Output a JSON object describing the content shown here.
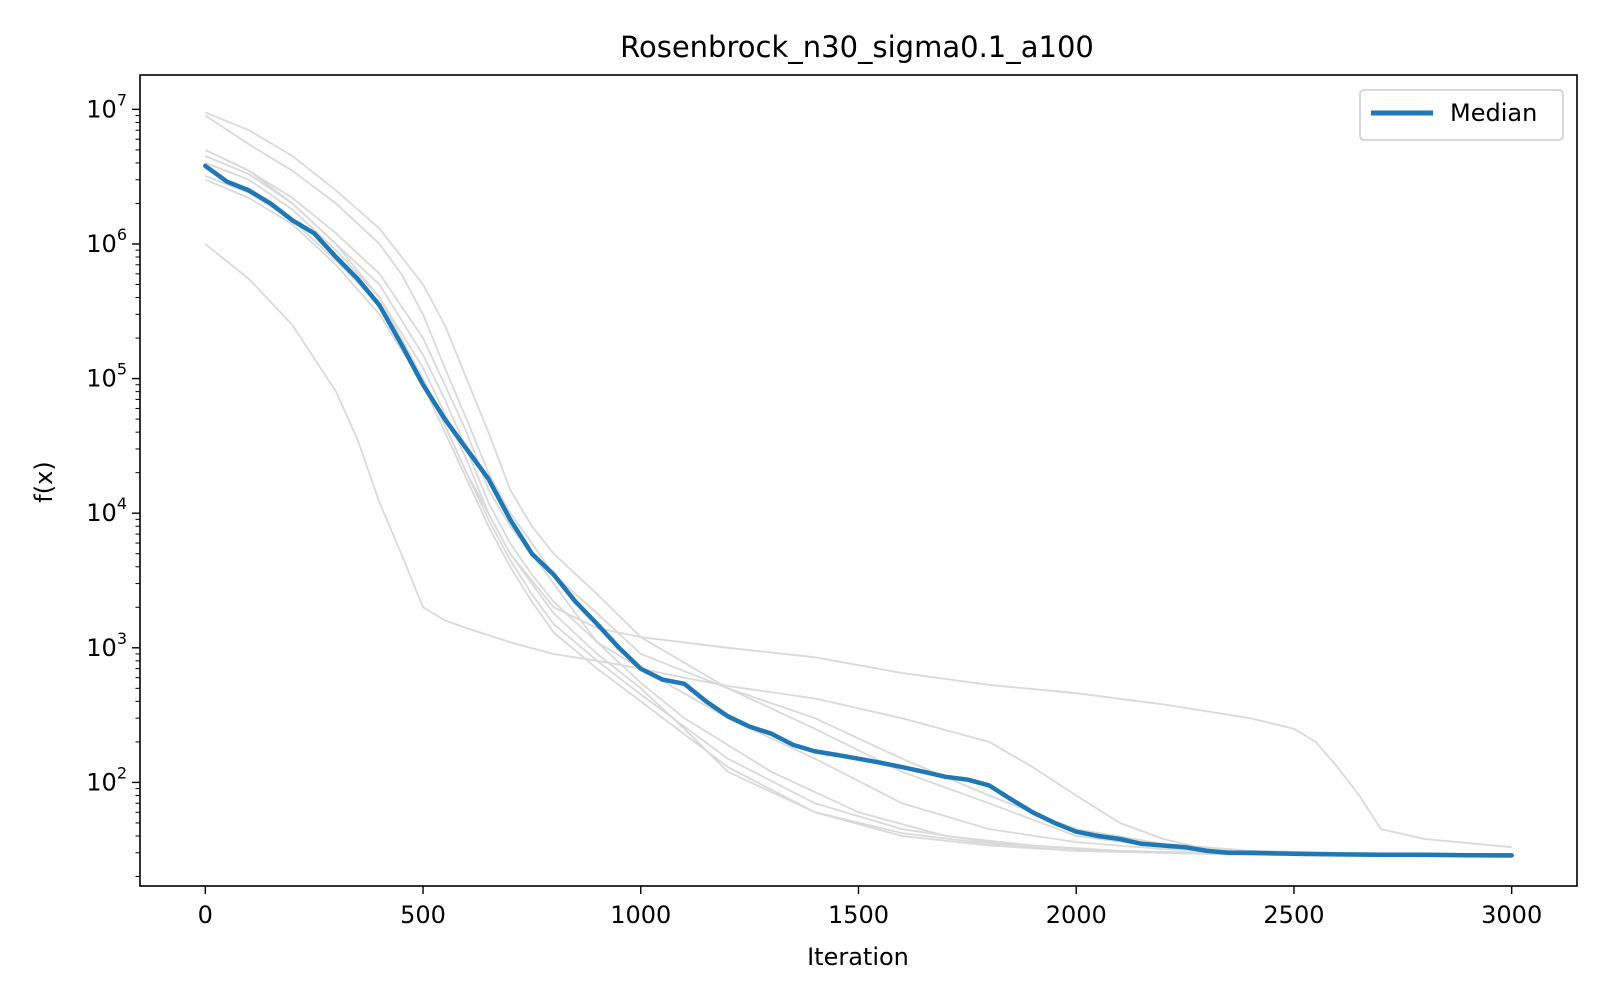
{
  "chart_data": {
    "type": "line",
    "title": "Rosenbrock_n30_sigma0.1_a100",
    "xlabel": "Iteration",
    "ylabel": "f(x)",
    "xlim": [
      -150,
      3150
    ],
    "ylim": [
      17,
      18000000
    ],
    "yscale": "log",
    "xticks": [
      0,
      500,
      1000,
      1500,
      2000,
      2500,
      3000
    ],
    "xtick_labels": [
      "0",
      "500",
      "1000",
      "1500",
      "2000",
      "2500",
      "3000"
    ],
    "yticks": [
      100,
      1000,
      10000,
      100000,
      1000000,
      10000000
    ],
    "ytick_labels": [
      {
        "base": "10",
        "exp": "2"
      },
      {
        "base": "10",
        "exp": "3"
      },
      {
        "base": "10",
        "exp": "4"
      },
      {
        "base": "10",
        "exp": "5"
      },
      {
        "base": "10",
        "exp": "6"
      },
      {
        "base": "10",
        "exp": "7"
      }
    ],
    "grid": false,
    "legend": {
      "position": "top-right",
      "entries": [
        "Median"
      ]
    },
    "colors": {
      "median": "#1f77b4",
      "runs": "#d9d9d9"
    },
    "series": [
      {
        "name": "Median",
        "x": [
          0,
          50,
          100,
          150,
          200,
          250,
          300,
          350,
          400,
          450,
          500,
          550,
          600,
          650,
          700,
          750,
          800,
          850,
          900,
          950,
          1000,
          1050,
          1100,
          1150,
          1200,
          1250,
          1300,
          1350,
          1400,
          1450,
          1500,
          1550,
          1600,
          1650,
          1700,
          1750,
          1800,
          1850,
          1900,
          1950,
          2000,
          2050,
          2100,
          2150,
          2200,
          2250,
          2300,
          2350,
          2400,
          2500,
          2600,
          2700,
          2800,
          2900,
          3000
        ],
        "y": [
          3800000,
          2900000,
          2500000,
          2000000,
          1500000,
          1200000,
          800000,
          550000,
          350000,
          180000,
          90000,
          50000,
          30000,
          18000,
          9000,
          5000,
          3500,
          2200,
          1500,
          1000,
          700,
          580,
          540,
          400,
          310,
          260,
          230,
          190,
          170,
          160,
          150,
          140,
          130,
          120,
          110,
          105,
          95,
          75,
          60,
          50,
          43,
          40,
          38,
          35,
          34,
          33,
          31,
          30,
          30,
          29.5,
          29.2,
          29,
          29,
          28.8,
          28.7
        ]
      },
      {
        "x": [
          0,
          100,
          200,
          300,
          400,
          500,
          550,
          600,
          650,
          700,
          750,
          800,
          900,
          1000,
          1200,
          1400,
          1600,
          1800,
          2000,
          2200,
          2400,
          2600,
          2800,
          3000
        ],
        "y": [
          9500000,
          7000000,
          4500000,
          2500000,
          1300000,
          500000,
          250000,
          100000,
          40000,
          15000,
          8000,
          5000,
          2500,
          1200,
          500,
          300,
          150,
          80,
          45,
          35,
          31,
          30,
          29.5,
          29
        ]
      },
      {
        "x": [
          0,
          100,
          200,
          300,
          400,
          450,
          500,
          550,
          600,
          650,
          700,
          750,
          800,
          900,
          1000,
          1200,
          1400,
          1600,
          1800,
          2000,
          2200,
          2400,
          2600,
          3000
        ],
        "y": [
          9000000,
          5500000,
          3500000,
          2000000,
          1000000,
          600000,
          300000,
          120000,
          50000,
          20000,
          10000,
          6000,
          3500,
          1800,
          900,
          500,
          250,
          120,
          70,
          40,
          33,
          30,
          29,
          28.5
        ]
      },
      {
        "x": [
          0,
          100,
          200,
          300,
          400,
          500,
          550,
          600,
          650,
          700,
          750,
          800,
          850,
          900,
          1000,
          1200,
          1400,
          1600,
          1800,
          2000,
          2200,
          2400,
          3000
        ],
        "y": [
          5000000,
          3500000,
          2200000,
          1200000,
          600000,
          200000,
          90000,
          40000,
          15000,
          8000,
          5000,
          3000,
          1800,
          1100,
          700,
          300,
          150,
          70,
          45,
          36,
          32,
          30,
          28
        ]
      },
      {
        "x": [
          0,
          100,
          200,
          300,
          400,
          500,
          550,
          600,
          650,
          700,
          750,
          800,
          900,
          1000,
          1100,
          1300,
          1500,
          1700,
          1900,
          2100,
          2300,
          2500,
          3000
        ],
        "y": [
          4500000,
          3300000,
          2000000,
          1000000,
          500000,
          150000,
          70000,
          30000,
          12000,
          6000,
          3500,
          2200,
          1100,
          550,
          300,
          120,
          60,
          40,
          34,
          31,
          30,
          29,
          28
        ]
      },
      {
        "x": [
          0,
          100,
          200,
          300,
          400,
          500,
          550,
          600,
          650,
          700,
          750,
          800,
          900,
          1000,
          1100,
          1200,
          1400,
          1600,
          1800,
          2000,
          2200,
          2400,
          3000
        ],
        "y": [
          4000000,
          3000000,
          1800000,
          900000,
          400000,
          120000,
          55000,
          25000,
          10000,
          5000,
          3000,
          1800,
          900,
          500,
          250,
          120,
          60,
          40,
          34,
          31,
          30,
          29,
          28
        ]
      },
      {
        "x": [
          0,
          100,
          200,
          300,
          400,
          500,
          550,
          600,
          650,
          700,
          750,
          800,
          900,
          1000,
          1200,
          1400,
          1600,
          1800,
          2000,
          2200,
          2400,
          3000
        ],
        "y": [
          3200000,
          2400000,
          1500000,
          750000,
          350000,
          100000,
          45000,
          20000,
          9000,
          4500,
          2500,
          1500,
          800,
          450,
          150,
          70,
          45,
          36,
          32,
          30,
          29,
          28
        ]
      },
      {
        "x": [
          0,
          100,
          200,
          300,
          400,
          500,
          550,
          600,
          650,
          700,
          750,
          800,
          900,
          1000,
          1200,
          1400,
          1600,
          1800,
          2000,
          2200,
          2400,
          3000
        ],
        "y": [
          3000000,
          2200000,
          1400000,
          700000,
          300000,
          90000,
          40000,
          18000,
          8000,
          4000,
          2200,
          1300,
          700,
          400,
          130,
          60,
          42,
          35,
          31,
          30,
          29,
          28
        ]
      },
      {
        "x": [
          0,
          100,
          200,
          300,
          400,
          500,
          600,
          700,
          800,
          900,
          1000,
          1200,
          1400,
          1600,
          1800,
          2000,
          2200,
          2400,
          2500,
          2550,
          2600,
          2650,
          2700,
          2800,
          3000
        ],
        "y": [
          5000000,
          3500000,
          2000000,
          1000000,
          400000,
          100000,
          20000,
          5000,
          2000,
          1400,
          1200,
          1000,
          850,
          650,
          530,
          460,
          380,
          300,
          250,
          200,
          130,
          80,
          45,
          38,
          33
        ]
      },
      {
        "x": [
          0,
          100,
          200,
          300,
          350,
          400,
          450,
          500,
          550,
          600,
          700,
          800,
          900,
          1000,
          1100,
          1200,
          1400,
          1600,
          1800,
          1900,
          2000,
          2100,
          2200,
          2300,
          2400,
          3000
        ],
        "y": [
          1000000,
          550000,
          250000,
          80000,
          35000,
          12000,
          5000,
          2000,
          1600,
          1400,
          1100,
          900,
          800,
          700,
          600,
          520,
          420,
          300,
          200,
          130,
          80,
          50,
          38,
          32,
          30,
          28
        ]
      }
    ]
  }
}
